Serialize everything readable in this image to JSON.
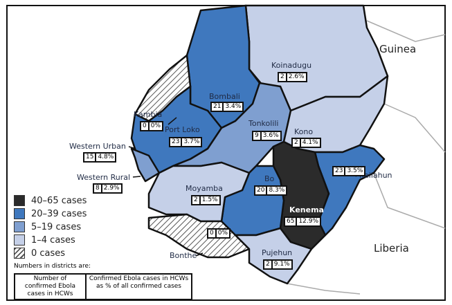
{
  "countries": {
    "guinea": "Guinea",
    "liberia": "Liberia"
  },
  "colors": {
    "40-65": "#2b2b2b",
    "20-39": "#3f78be",
    "5-19": "#7f9fd0",
    "1-4": "#c5d0e8",
    "0": "hatched"
  },
  "districts": [
    {
      "name": "Koinadugu",
      "cases": "2",
      "pct": "2.6%",
      "category": "1-4"
    },
    {
      "name": "Bombali",
      "cases": "21",
      "pct": "3.4%",
      "category": "20-39"
    },
    {
      "name": "Kambia",
      "cases": "0",
      "pct": "0%",
      "category": "0"
    },
    {
      "name": "Port Loko",
      "cases": "23",
      "pct": "3.7%",
      "category": "20-39"
    },
    {
      "name": "Tonkolili",
      "cases": "9",
      "pct": "3.6%",
      "category": "5-19"
    },
    {
      "name": "Kono",
      "cases": "2",
      "pct": "4.1%",
      "category": "1-4"
    },
    {
      "name": "Western Urban",
      "cases": "15",
      "pct": "4.8%",
      "category": "5-19"
    },
    {
      "name": "Western Rural",
      "cases": "8",
      "pct": "2.9%",
      "category": "5-19"
    },
    {
      "name": "Kailahun",
      "cases": "23",
      "pct": "3.5%",
      "category": "20-39"
    },
    {
      "name": "Moyamba",
      "cases": "2",
      "pct": "1.5%",
      "category": "1-4"
    },
    {
      "name": "Bo",
      "cases": "20",
      "pct": "8.3%",
      "category": "20-39"
    },
    {
      "name": "Kenema",
      "cases": "65",
      "pct": "12.9%",
      "category": "40-65"
    },
    {
      "name": "Bonthe",
      "cases": "0",
      "pct": "0%",
      "category": "0"
    },
    {
      "name": "Pujehun",
      "cases": "2",
      "pct": "9.1%",
      "category": "1-4"
    }
  ],
  "legend": {
    "items": [
      "40–65 cases",
      "20–39 cases",
      "5–19 cases",
      "1–4 cases",
      "0 cases"
    ],
    "note": "Numbers in districts are:",
    "key_left": "Number of confirmed Ebola cases in HCWs",
    "key_right": "Confirmed Ebola cases in HCWs as % of all confirmed cases"
  }
}
